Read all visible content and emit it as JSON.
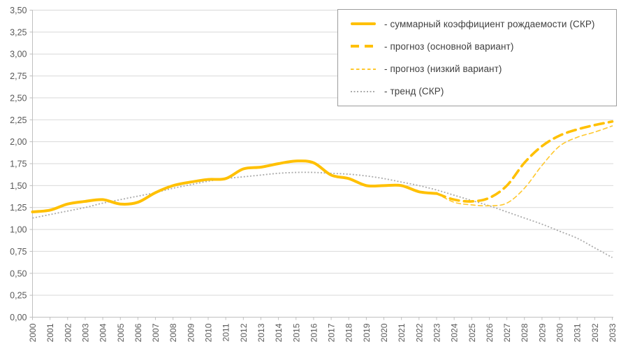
{
  "chart_data": {
    "type": "line",
    "title": "",
    "xlabel": "",
    "ylabel": "",
    "x": [
      "2000",
      "2001",
      "2002",
      "2003",
      "2004",
      "2005",
      "2006",
      "2007",
      "2008",
      "2009",
      "2010",
      "2011",
      "2012",
      "2013",
      "2014",
      "2015",
      "2016",
      "2017",
      "2018",
      "2019",
      "2020",
      "2021",
      "2022",
      "2023",
      "2024",
      "2025",
      "2026",
      "2027",
      "2028",
      "2029",
      "2030",
      "2031",
      "2032",
      "2033"
    ],
    "y_axis": {
      "min": 0,
      "max": 3.5,
      "step": 0.25,
      "tick_labels": [
        "0,00",
        "0,25",
        "0,50",
        "0,75",
        "1,00",
        "1,25",
        "1,50",
        "1,75",
        "2,00",
        "2,25",
        "2,50",
        "2,75",
        "3,00",
        "3,25",
        "3,50"
      ]
    },
    "grid": "horizontal",
    "legend_position": "top-right",
    "series": [
      {
        "name": "fact",
        "legend_label": "- суммарный коэффициент рождаемости (СКР)",
        "style": "solid",
        "color": "#FFC000",
        "width": 4,
        "dash": "",
        "smooth": true,
        "offset": 0,
        "values": [
          1.2,
          1.22,
          1.29,
          1.32,
          1.34,
          1.29,
          1.31,
          1.42,
          1.5,
          1.54,
          1.57,
          1.58,
          1.69,
          1.71,
          1.75,
          1.78,
          1.76,
          1.62,
          1.58,
          1.5,
          1.5,
          1.5,
          1.43,
          1.41
        ]
      },
      {
        "name": "forecast-main",
        "legend_label": "- прогноз (основной вариант)",
        "style": "dashed-thick",
        "color": "#FFC000",
        "width": 3.6,
        "dash": "13 7.5",
        "smooth": true,
        "offset": 23,
        "values": [
          1.41,
          1.34,
          1.32,
          1.36,
          1.5,
          1.76,
          1.95,
          2.07,
          2.14,
          2.19,
          2.23
        ]
      },
      {
        "name": "forecast-low",
        "legend_label": "- прогноз (низкий вариант)",
        "style": "dashed-thin",
        "color": "#FFC82E",
        "width": 1.6,
        "dash": "6 4.5",
        "smooth": true,
        "offset": 23,
        "values": [
          1.41,
          1.31,
          1.28,
          1.27,
          1.3,
          1.47,
          1.73,
          1.95,
          2.05,
          2.11,
          2.18
        ]
      },
      {
        "name": "trend",
        "legend_label": "- тренд (СКР)",
        "style": "dotted",
        "color": "#ABABAB",
        "width": 1.8,
        "dash": "2 2.6",
        "smooth": true,
        "offset": 0,
        "values": [
          1.13,
          1.17,
          1.21,
          1.25,
          1.3,
          1.34,
          1.38,
          1.42,
          1.47,
          1.51,
          1.55,
          1.58,
          1.6,
          1.62,
          1.64,
          1.65,
          1.65,
          1.64,
          1.63,
          1.61,
          1.58,
          1.54,
          1.5,
          1.45,
          1.39,
          1.33,
          1.27,
          1.2,
          1.13,
          1.06,
          0.98,
          0.9,
          0.79,
          0.68
        ]
      }
    ],
    "style": {
      "gold": "#FFC000",
      "trend_gray": "#ABABAB",
      "grid_color": "#D9D9D9",
      "axis_color": "#BFBFBF",
      "tick_label_color": "#595959",
      "legend_text_color": "#404040",
      "legend_border_color": "#9D9D9D",
      "background": "#FFFFFF"
    }
  }
}
